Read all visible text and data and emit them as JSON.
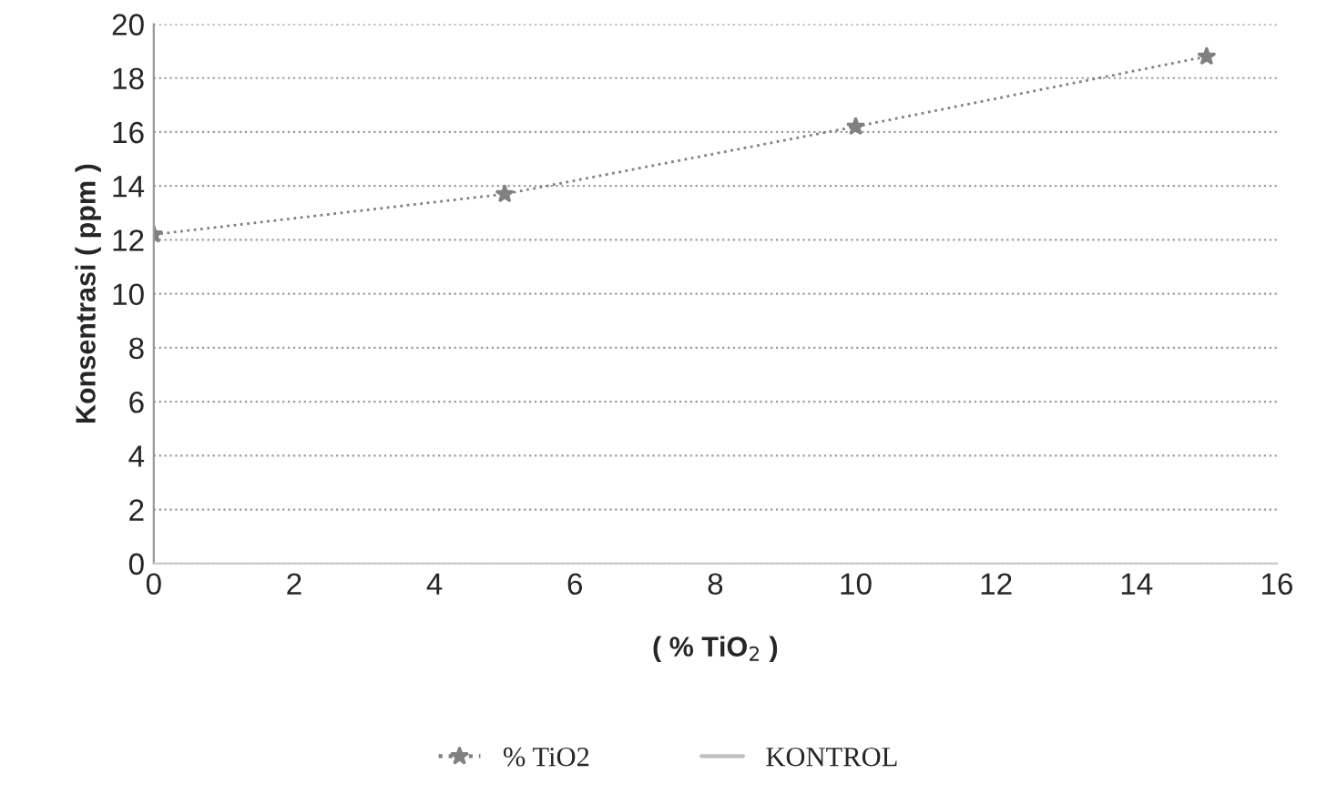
{
  "chart_data": {
    "type": "line",
    "xlabel": "( % TiO$_{2}$ )",
    "ylabel": "Konsentrasi ( ppm )",
    "x": [
      0,
      5,
      10,
      15
    ],
    "series": [
      {
        "name": "% TiO2",
        "color": "#808080",
        "values": [
          12.2,
          13.7,
          16.2,
          18.8
        ],
        "marker": "star",
        "line_style": "dotted"
      },
      {
        "name": "KONTROL",
        "color": "#c0c0c0",
        "values": [
          null,
          null,
          null,
          null
        ],
        "marker": "none",
        "line_style": "solid"
      }
    ],
    "xlim": [
      0,
      16
    ],
    "xticks": [
      0,
      2,
      4,
      6,
      8,
      10,
      12,
      14,
      16
    ],
    "ylim": [
      0,
      20
    ],
    "yticks": [
      0,
      2,
      4,
      6,
      8,
      10,
      12,
      14,
      16,
      18,
      20
    ],
    "grid": "y",
    "legend": "bottom"
  }
}
